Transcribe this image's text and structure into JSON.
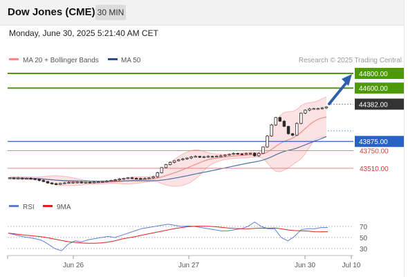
{
  "header": {
    "title": "Dow Jones (CME)",
    "interval": "30 MIN",
    "timestamp": "Monday, June 30, 2025 5:21:40 AM CET"
  },
  "legend": {
    "ma20_label": "MA 20 + Bollinger Bands",
    "ma50_label": "MA 50",
    "credit": "Research © 2025 Trading Central"
  },
  "colors": {
    "green": "#4d9a06",
    "blue": "#2962c4",
    "red": "#d63b3b",
    "dark": "#333333",
    "candle": "#2a2a2a",
    "ma20": "#f28a8a",
    "band_fill": "#fbdada",
    "ma50": "#4a6fa8",
    "arrow": "#2e5fa8",
    "rsi": "#5b7fd6",
    "rsi_ma": "#e02020"
  },
  "rsi_panel": {
    "rsi_label": "RSI",
    "ma_label": "9MA",
    "levels": [
      "70",
      "50",
      "30"
    ]
  },
  "chart_data": {
    "type": "candlestick",
    "x_ticks": [
      "Jun 26",
      "Jun 27",
      "Jun 30",
      "Jul 10"
    ],
    "price_levels": [
      {
        "value": 44800,
        "label": "44800.00",
        "style": "green-line-tag"
      },
      {
        "value": 44600,
        "label": "44600.00",
        "style": "green-line-tag"
      },
      {
        "value": 44382,
        "label": "44382.00",
        "style": "dark-tag-dotted"
      },
      {
        "value": 43875,
        "label": "43875.00",
        "style": "blue-line-tag"
      },
      {
        "value": 43750,
        "label": "43750.00",
        "style": "red-line-text"
      },
      {
        "value": 43510,
        "label": "43510.00",
        "style": "red-line-text"
      }
    ],
    "close_approx": [
      43380,
      43372,
      43378,
      43370,
      43374,
      43368,
      43360,
      43345,
      43330,
      43310,
      43300,
      43292,
      43305,
      43312,
      43318,
      43320,
      43322,
      43315,
      43320,
      43318,
      43322,
      43325,
      43330,
      43335,
      43345,
      43355,
      43365,
      43372,
      43380,
      43375,
      43372,
      43370,
      43372,
      43380,
      43395,
      43450,
      43520,
      43560,
      43590,
      43612,
      43625,
      43638,
      43650,
      43665,
      43672,
      43660,
      43668,
      43672,
      43670,
      43675,
      43680,
      43690,
      43700,
      43712,
      43706,
      43702,
      43710,
      43715,
      43680,
      43712,
      43800,
      43950,
      44100,
      44200,
      44150,
      44080,
      43980,
      43960,
      44120,
      44260,
      44300,
      44318,
      44322,
      44322,
      44330,
      44345
    ],
    "rsi_approx": [
      58,
      55,
      52,
      50,
      48,
      45,
      38,
      30,
      26,
      38,
      44,
      42,
      46,
      48,
      50,
      52,
      50,
      54,
      58,
      62,
      66,
      68,
      70,
      72,
      74,
      72,
      70,
      71,
      70,
      68,
      66,
      64,
      62,
      62,
      64,
      66,
      70,
      78,
      70,
      66,
      66,
      50,
      44,
      52,
      64,
      66,
      66,
      68,
      68
    ]
  }
}
